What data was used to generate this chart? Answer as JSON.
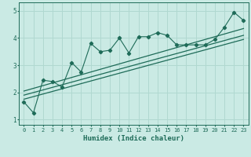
{
  "xlabel": "Humidex (Indice chaleur)",
  "xlim": [
    -0.5,
    23.5
  ],
  "ylim": [
    0.8,
    5.3
  ],
  "yticks": [
    1,
    2,
    3,
    4,
    5
  ],
  "xticks": [
    0,
    1,
    2,
    3,
    4,
    5,
    6,
    7,
    8,
    9,
    10,
    11,
    12,
    13,
    14,
    15,
    16,
    17,
    18,
    19,
    20,
    21,
    22,
    23
  ],
  "bg_color": "#caeae4",
  "grid_color": "#b0d8d0",
  "line_color": "#1e6b58",
  "scatter_data_x": [
    0,
    1,
    2,
    3,
    4,
    5,
    6,
    7,
    8,
    9,
    10,
    11,
    12,
    13,
    14,
    15,
    16,
    17,
    18,
    19,
    20,
    21,
    22,
    23
  ],
  "scatter_data_y": [
    1.65,
    1.25,
    2.45,
    2.4,
    2.2,
    3.1,
    2.75,
    3.8,
    3.5,
    3.55,
    4.0,
    3.45,
    4.05,
    4.05,
    4.2,
    4.1,
    3.75,
    3.75,
    3.75,
    3.75,
    3.95,
    4.4,
    4.95,
    4.65
  ],
  "line1_x": [
    0,
    23
  ],
  "line1_y": [
    1.9,
    4.1
  ],
  "line2_x": [
    0,
    23
  ],
  "line2_y": [
    2.05,
    4.35
  ],
  "line3_x": [
    0,
    23
  ],
  "line3_y": [
    1.75,
    3.95
  ]
}
